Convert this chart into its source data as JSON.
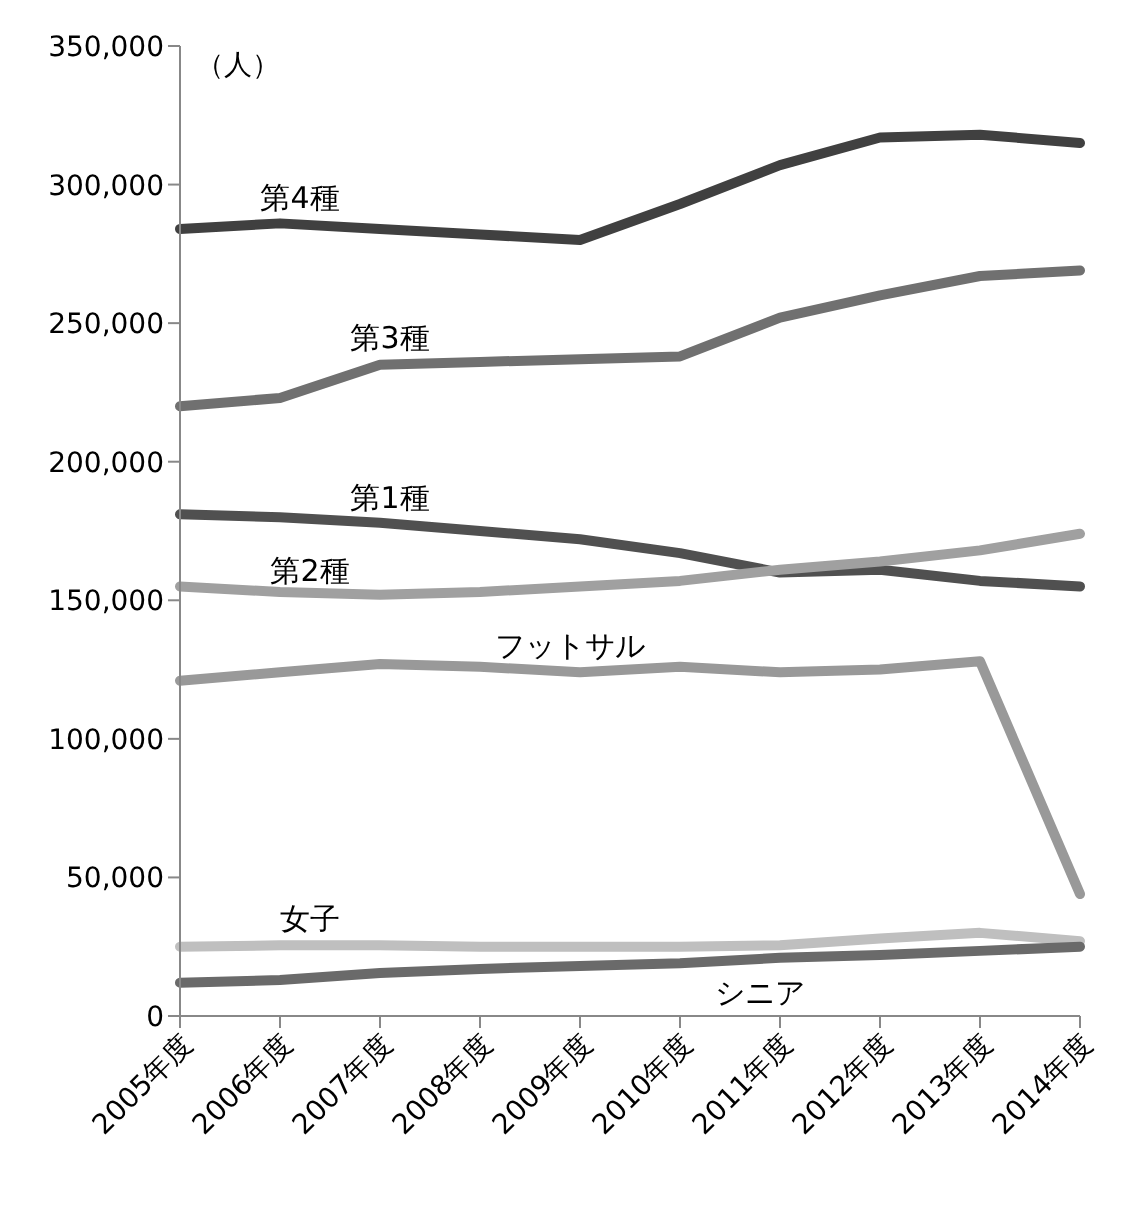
{
  "chart_data": {
    "type": "line",
    "ylabel": "（人）",
    "categories": [
      "2005年度",
      "2006年度",
      "2007年度",
      "2008年度",
      "2009年度",
      "2010年度",
      "2011年度",
      "2012年度",
      "2013年度",
      "2014年度"
    ],
    "ylim": [
      0,
      350000
    ],
    "yticks": [
      {
        "value": 0,
        "label": "0"
      },
      {
        "value": 50000,
        "label": "50,000"
      },
      {
        "value": 100000,
        "label": "100,000"
      },
      {
        "value": 150000,
        "label": "150,000"
      },
      {
        "value": 200000,
        "label": "200,000"
      },
      {
        "value": 250000,
        "label": "250,000"
      },
      {
        "value": 300000,
        "label": "300,000"
      },
      {
        "value": 350000,
        "label": "350,000"
      }
    ],
    "grid": false,
    "legend": false,
    "marker": "none",
    "line_style": "solid",
    "series": [
      {
        "name": "第4種",
        "color": "#404040",
        "values": [
          284000,
          286000,
          284000,
          282000,
          280000,
          293000,
          307000,
          317000,
          318000,
          315000
        ]
      },
      {
        "name": "第3種",
        "color": "#707070",
        "values": [
          220000,
          223000,
          235000,
          236000,
          237000,
          238000,
          252000,
          260000,
          267000,
          269000
        ]
      },
      {
        "name": "第1種",
        "color": "#505050",
        "values": [
          181000,
          180000,
          178000,
          175000,
          172000,
          167000,
          160000,
          161000,
          157000,
          155000
        ]
      },
      {
        "name": "第2種",
        "color": "#a0a0a0",
        "values": [
          155000,
          153000,
          152000,
          153000,
          155000,
          157000,
          161000,
          164000,
          168000,
          174000
        ]
      },
      {
        "name": "フットサル",
        "color": "#999999",
        "values": [
          121000,
          124000,
          127000,
          126000,
          124000,
          126000,
          124000,
          125000,
          128000,
          44000
        ]
      },
      {
        "name": "女子",
        "color": "#bfbfbf",
        "values": [
          25000,
          25500,
          25500,
          25000,
          25000,
          25000,
          25500,
          28000,
          30000,
          27000
        ]
      },
      {
        "name": "シニア",
        "color": "#6a6a6a",
        "values": [
          12000,
          13000,
          15500,
          17000,
          18000,
          19000,
          21000,
          22000,
          23500,
          25000
        ]
      }
    ]
  }
}
